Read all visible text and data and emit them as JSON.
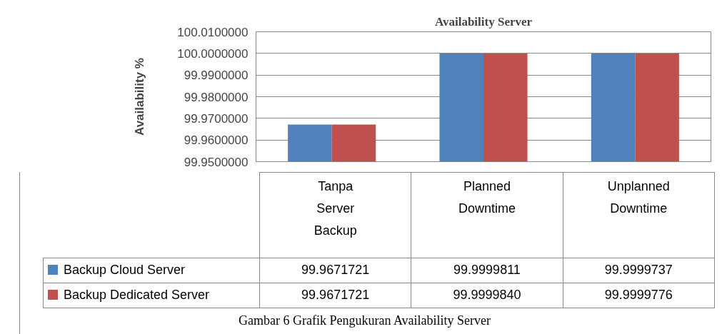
{
  "chart_data": {
    "type": "bar",
    "title": "Availability Server",
    "ylabel": "Availability %",
    "categories": [
      "Tanpa Server Backup",
      "Planned Downtime",
      "Unplanned Downtime"
    ],
    "series": [
      {
        "name": "Backup Cloud Server",
        "color": "#4f81bd",
        "values": [
          99.9671721,
          99.9999811,
          99.9999737
        ],
        "value_labels": [
          "99.9671721",
          "99.9999811",
          "99.9999737"
        ]
      },
      {
        "name": "Backup Dedicated Server",
        "color": "#c0504d",
        "values": [
          99.9671721,
          99.999984,
          99.9999776
        ],
        "value_labels": [
          "99.9671721",
          "99.9999840",
          "99.9999776"
        ]
      }
    ],
    "ylim": [
      99.95,
      100.01
    ],
    "yticks": [
      {
        "value": 99.95,
        "label": "99.9500000"
      },
      {
        "value": 99.96,
        "label": "99.9600000"
      },
      {
        "value": 99.97,
        "label": "99.9700000"
      },
      {
        "value": 99.98,
        "label": "99.9800000"
      },
      {
        "value": 99.99,
        "label": "99.9900000"
      },
      {
        "value": 100.0,
        "label": "100.0000000"
      },
      {
        "value": 100.01,
        "label": "100.0100000"
      }
    ],
    "grid": "y",
    "legend": "bottom",
    "annotations": [
      "Gambar 6 Grafik Pengukuran Availability Server"
    ]
  }
}
